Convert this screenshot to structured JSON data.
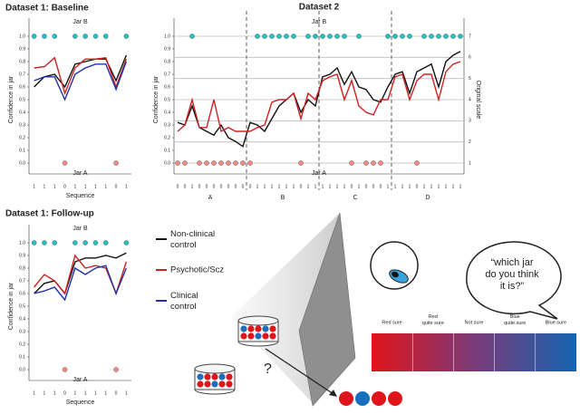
{
  "chart_data": [
    {
      "type": "line",
      "title": "Dataset 1: Baseline",
      "ylabel": "Confidence in jar",
      "xlabel": "Sequence",
      "top_label": "Jar B",
      "bottom_label": "Jar A",
      "draws": [
        1,
        1,
        1,
        0,
        1,
        1,
        1,
        1,
        0,
        1
      ],
      "series": [
        {
          "name": "Non-clinical control",
          "color": "#111111",
          "values": [
            0.6,
            0.68,
            0.7,
            0.6,
            0.78,
            0.8,
            0.82,
            0.82,
            0.65,
            0.85
          ]
        },
        {
          "name": "Psychotic/Scz",
          "color": "#cc2222",
          "values": [
            0.75,
            0.76,
            0.83,
            0.55,
            0.75,
            0.82,
            0.82,
            0.83,
            0.6,
            0.82
          ]
        },
        {
          "name": "Clinical control",
          "color": "#2233aa",
          "values": [
            0.65,
            0.68,
            0.68,
            0.5,
            0.7,
            0.75,
            0.78,
            0.78,
            0.58,
            0.8
          ]
        }
      ],
      "ylim": [
        0,
        1
      ],
      "yticks": [
        {
          "value": 0,
          "label": "0.0"
        },
        {
          "value": 0.1,
          "label": "0.1"
        },
        {
          "value": 0.2,
          "label": "0.2"
        },
        {
          "value": 0.3,
          "label": "0.3"
        },
        {
          "value": 0.4,
          "label": "0.4"
        },
        {
          "value": 0.5,
          "label": "0.5"
        },
        {
          "value": 0.6,
          "label": "0.6"
        },
        {
          "value": 0.7,
          "label": "0.7"
        },
        {
          "value": 0.8,
          "label": "0.8"
        },
        {
          "value": 0.9,
          "label": "0.9"
        },
        {
          "value": 1,
          "label": "1.0"
        }
      ],
      "grid": false
    },
    {
      "type": "line",
      "title": "Dataset 2",
      "ylabel": "Confidence in jar",
      "y2label": "Original scale",
      "top_label": "Jar B",
      "bottom_label": "Jar A",
      "groups": [
        "A",
        "B",
        "C",
        "D"
      ],
      "draws": [
        0,
        0,
        1,
        0,
        0,
        0,
        0,
        0,
        0,
        0,
        0,
        1,
        1,
        1,
        1,
        1,
        1,
        0,
        1,
        1,
        1,
        1,
        1,
        1,
        0,
        1,
        0,
        0,
        0,
        1,
        1,
        1,
        1,
        0,
        1,
        1,
        1,
        1,
        1,
        1
      ],
      "series": [
        {
          "name": "Non-clinical control",
          "color": "#111111",
          "values": [
            0.32,
            0.3,
            0.45,
            0.28,
            0.25,
            0.22,
            0.3,
            0.2,
            0.17,
            0.13,
            0.32,
            0.3,
            0.25,
            0.35,
            0.45,
            0.5,
            0.55,
            0.4,
            0.5,
            0.45,
            0.68,
            0.7,
            0.75,
            0.62,
            0.72,
            0.6,
            0.58,
            0.5,
            0.48,
            0.6,
            0.7,
            0.72,
            0.55,
            0.72,
            0.75,
            0.78,
            0.6,
            0.8,
            0.85,
            0.88
          ]
        },
        {
          "name": "Psychotic/Scz",
          "color": "#cc2222",
          "values": [
            0.25,
            0.3,
            0.5,
            0.28,
            0.28,
            0.5,
            0.25,
            0.28,
            0.25,
            0.25,
            0.25,
            0.28,
            0.3,
            0.48,
            0.5,
            0.5,
            0.55,
            0.35,
            0.55,
            0.5,
            0.65,
            0.68,
            0.7,
            0.5,
            0.65,
            0.45,
            0.4,
            0.38,
            0.5,
            0.5,
            0.68,
            0.7,
            0.5,
            0.65,
            0.7,
            0.7,
            0.5,
            0.72,
            0.78,
            0.8
          ]
        }
      ],
      "ylim": [
        0,
        1
      ],
      "yticks": [
        {
          "value": 0,
          "label": "0.0"
        },
        {
          "value": 0.1,
          "label": "0.1"
        },
        {
          "value": 0.2,
          "label": "0.2"
        },
        {
          "value": 0.3,
          "label": "0.3"
        },
        {
          "value": 0.4,
          "label": "0.4"
        },
        {
          "value": 0.5,
          "label": "0.5"
        },
        {
          "value": 0.6,
          "label": "0.6"
        },
        {
          "value": 0.7,
          "label": "0.7"
        },
        {
          "value": 0.8,
          "label": "0.8"
        },
        {
          "value": 0.9,
          "label": "0.9"
        },
        {
          "value": 1,
          "label": "1.0"
        }
      ],
      "y2lim": [
        1,
        7
      ],
      "y2ticks": [
        1,
        2,
        3,
        4,
        5,
        6,
        7
      ],
      "grid": true
    },
    {
      "type": "line",
      "title": "Dataset 1: Follow-up",
      "ylabel": "Confidence in jar",
      "xlabel": "Sequence",
      "top_label": "Jar B",
      "bottom_label": "Jar A",
      "draws": [
        1,
        1,
        1,
        0,
        1,
        1,
        1,
        1,
        0,
        1
      ],
      "series": [
        {
          "name": "Non-clinical control",
          "color": "#111111",
          "values": [
            0.6,
            0.68,
            0.7,
            0.6,
            0.85,
            0.88,
            0.88,
            0.9,
            0.88,
            0.92
          ]
        },
        {
          "name": "Psychotic/Scz",
          "color": "#cc2222",
          "values": [
            0.65,
            0.75,
            0.7,
            0.6,
            0.9,
            0.8,
            0.82,
            0.8,
            0.6,
            0.85
          ]
        },
        {
          "name": "Clinical control",
          "color": "#2233aa",
          "values": [
            0.6,
            0.62,
            0.65,
            0.55,
            0.8,
            0.75,
            0.8,
            0.82,
            0.6,
            0.8
          ]
        }
      ],
      "ylim": [
        0,
        1
      ],
      "yticks": [
        {
          "value": 0,
          "label": "0.0"
        },
        {
          "value": 0.1,
          "label": "0.1"
        },
        {
          "value": 0.2,
          "label": "0.2"
        },
        {
          "value": 0.3,
          "label": "0.3"
        },
        {
          "value": 0.4,
          "label": "0.4"
        },
        {
          "value": 0.5,
          "label": "0.5"
        },
        {
          "value": 0.6,
          "label": "0.6"
        },
        {
          "value": 0.7,
          "label": "0.7"
        },
        {
          "value": 0.8,
          "label": "0.8"
        },
        {
          "value": 0.9,
          "label": "0.9"
        },
        {
          "value": 1,
          "label": "1.0"
        }
      ],
      "grid": false
    }
  ],
  "diagram": {
    "question": "“which jar do you think it is?”",
    "unknown": "?",
    "scale": [
      "Red sure",
      "Red quite sure",
      "Not sure",
      "Blue quite sure",
      "Blue sure"
    ]
  }
}
